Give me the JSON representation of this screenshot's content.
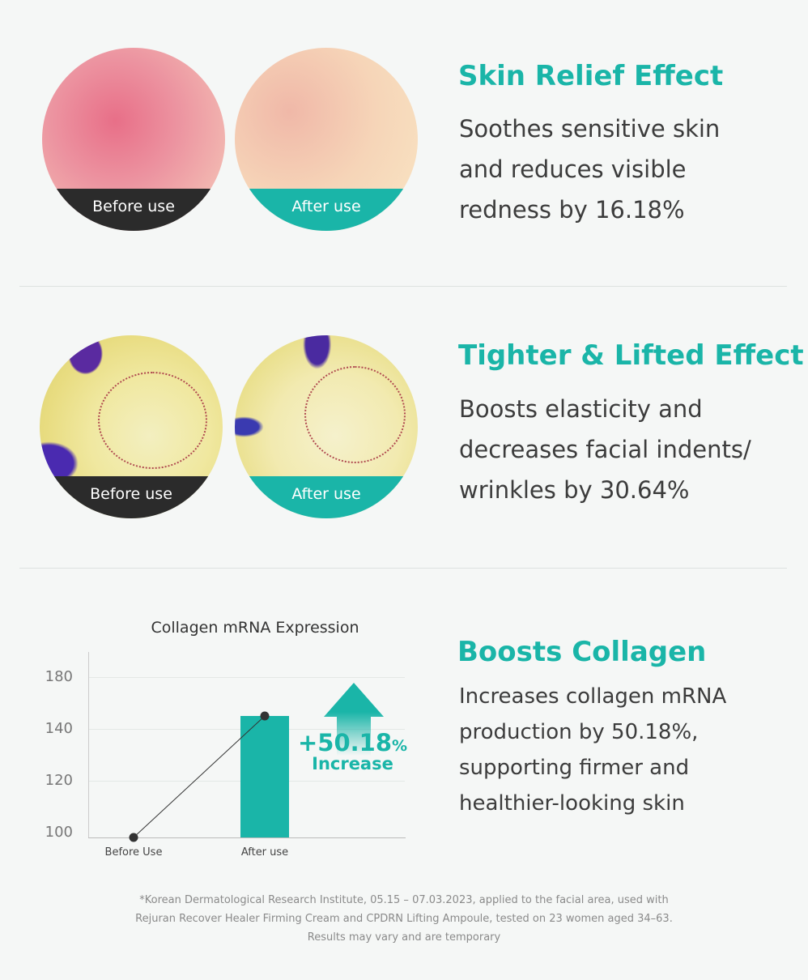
{
  "sections": [
    {
      "title": "Skin Relief Effect",
      "body": "Soothes sensitive skin\nand reduces visible\nredness by 16.18%",
      "before_label": "Before use",
      "after_label": "After use"
    },
    {
      "title": "Tighter & Lifted Effect",
      "body": "Boosts elasticity and\ndecreases facial indents/\nwrinkles by 30.64%",
      "before_label": "Before use",
      "after_label": "After use"
    },
    {
      "title": "Boosts Collagen",
      "body": "Increases collagen mRNA\nproduction by 50.18%,\nsupporting firmer and\nhealthier-looking skin"
    }
  ],
  "colors": {
    "accent": "#1ab5a8",
    "before_band": "#2b2b2b",
    "background": "#f5f7f6"
  },
  "chart_data": {
    "type": "bar",
    "title": "Collagen mRNA Expression",
    "categories": [
      "Before Use",
      "After use"
    ],
    "values": [
      100,
      150
    ],
    "yticks": [
      100,
      120,
      140,
      180
    ],
    "ylim": [
      100,
      190
    ],
    "grid": true,
    "annotation": {
      "value": "+50.18",
      "unit": "%",
      "label": "Increase"
    }
  },
  "footnote": [
    "*Korean Dermatological Research Institute, 05.15 – 07.03.2023, applied to the facial area, used with",
    "Rejuran Recover Healer Firming Cream and CPDRN Lifting Ampoule, tested on 23 women aged 34–63.",
    "Results may vary and are temporary"
  ]
}
